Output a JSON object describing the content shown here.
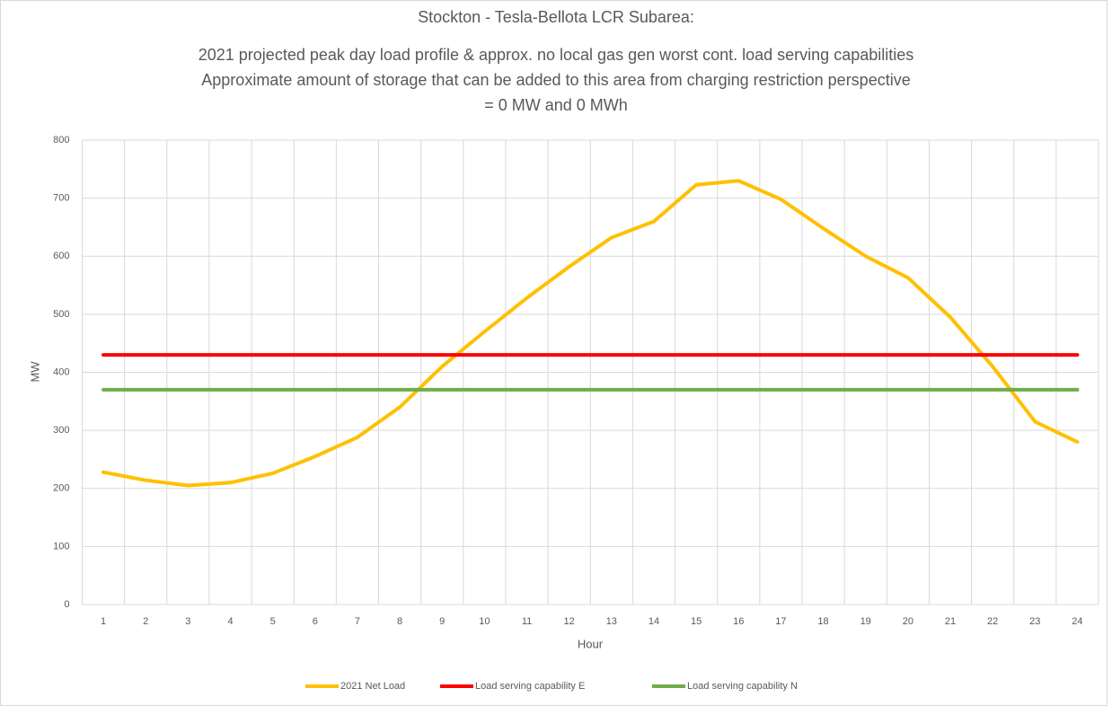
{
  "chart_data": {
    "type": "line",
    "title": [
      "Stockton - Tesla-Bellota LCR Subarea:",
      "2021 projected peak day load profile & approx. no local gas gen worst cont. load serving capabilities",
      "Approximate amount of storage that can be added to this area from charging restriction perspective",
      "= 0 MW and 0 MWh"
    ],
    "xlabel": "Hour",
    "ylabel": "MW",
    "categories": [
      1,
      2,
      3,
      4,
      5,
      6,
      7,
      8,
      9,
      10,
      11,
      12,
      13,
      14,
      15,
      16,
      17,
      18,
      19,
      20,
      21,
      22,
      23,
      24
    ],
    "series": [
      {
        "name": "2021 Net Load",
        "color": "#ffc000",
        "values": [
          228,
          214,
          205,
          210,
          226,
          255,
          288,
          340,
          410,
          470,
          528,
          582,
          632,
          660,
          723,
          730,
          698,
          648,
          600,
          563,
          495,
          410,
          315,
          280
        ]
      },
      {
        "name": "Load serving capability E",
        "color": "#ff0000",
        "values": [
          430,
          430,
          430,
          430,
          430,
          430,
          430,
          430,
          430,
          430,
          430,
          430,
          430,
          430,
          430,
          430,
          430,
          430,
          430,
          430,
          430,
          430,
          430,
          430
        ]
      },
      {
        "name": "Load serving capability N",
        "color": "#70ad47",
        "values": [
          370,
          370,
          370,
          370,
          370,
          370,
          370,
          370,
          370,
          370,
          370,
          370,
          370,
          370,
          370,
          370,
          370,
          370,
          370,
          370,
          370,
          370,
          370,
          370
        ]
      }
    ],
    "ylim": [
      0,
      800
    ],
    "yticks": [
      0,
      100,
      200,
      300,
      400,
      500,
      600,
      700,
      800
    ],
    "grid": true,
    "legend": "bottom"
  }
}
